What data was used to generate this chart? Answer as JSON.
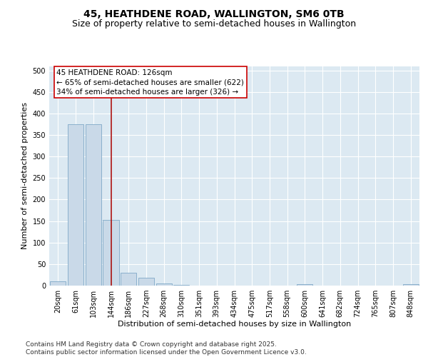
{
  "title": "45, HEATHDENE ROAD, WALLINGTON, SM6 0TB",
  "subtitle": "Size of property relative to semi-detached houses in Wallington",
  "xlabel": "Distribution of semi-detached houses by size in Wallington",
  "ylabel": "Number of semi-detached properties",
  "bins": [
    "20sqm",
    "61sqm",
    "103sqm",
    "144sqm",
    "186sqm",
    "227sqm",
    "268sqm",
    "310sqm",
    "351sqm",
    "393sqm",
    "434sqm",
    "475sqm",
    "517sqm",
    "558sqm",
    "600sqm",
    "641sqm",
    "682sqm",
    "724sqm",
    "765sqm",
    "807sqm",
    "848sqm"
  ],
  "values": [
    10,
    375,
    375,
    153,
    30,
    18,
    5,
    1,
    0,
    0,
    0,
    0,
    0,
    0,
    3,
    0,
    0,
    0,
    0,
    0,
    3
  ],
  "bar_color": "#c9d9e8",
  "bar_edge_color": "#7fa8c8",
  "vline_color": "#aa1111",
  "vline_x": 3.0,
  "annotation_text": "45 HEATHDENE ROAD: 126sqm\n← 65% of semi-detached houses are smaller (622)\n34% of semi-detached houses are larger (326) →",
  "annotation_box_facecolor": "#ffffff",
  "annotation_box_edgecolor": "#cc0000",
  "ylim": [
    0,
    510
  ],
  "yticks": [
    0,
    50,
    100,
    150,
    200,
    250,
    300,
    350,
    400,
    450,
    500
  ],
  "plot_background": "#dce9f2",
  "grid_color": "#ffffff",
  "footer": "Contains HM Land Registry data © Crown copyright and database right 2025.\nContains public sector information licensed under the Open Government Licence v3.0.",
  "title_fontsize": 10,
  "subtitle_fontsize": 9,
  "axis_label_fontsize": 8,
  "tick_fontsize": 7,
  "annotation_fontsize": 7.5,
  "footer_fontsize": 6.5
}
